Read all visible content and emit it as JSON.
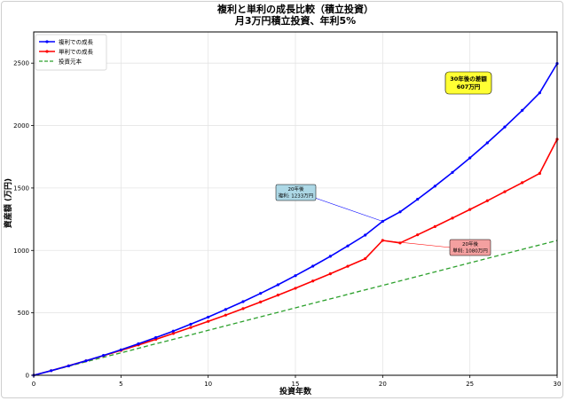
{
  "chart_data": {
    "type": "line",
    "title": "複利と単利の成長比較（積立投資）",
    "subtitle": "月3万円積立投資、年利5%",
    "xlabel": "投資年数",
    "ylabel": "資産額 (万円)",
    "xlim": [
      0,
      30
    ],
    "ylim": [
      0,
      2750
    ],
    "x_ticks": [
      0,
      5,
      10,
      15,
      20,
      25,
      30
    ],
    "y_ticks": [
      0,
      500,
      1000,
      1500,
      2000,
      2500
    ],
    "grid": true,
    "legend_position": "top-left",
    "x": [
      0,
      1,
      2,
      3,
      4,
      5,
      6,
      7,
      8,
      9,
      10,
      11,
      12,
      13,
      14,
      15,
      16,
      17,
      18,
      19,
      20,
      21,
      22,
      23,
      24,
      25,
      26,
      27,
      28,
      29,
      30
    ],
    "series": [
      {
        "name": "複利での成長",
        "color": "#0000ff",
        "style": "solid",
        "marker": true,
        "values": [
          0,
          37,
          75,
          116,
          159,
          204,
          252,
          302,
          354,
          409,
          466,
          527,
          590,
          656,
          725,
          798,
          874,
          953,
          1036,
          1123,
          1233,
          1309,
          1410,
          1515,
          1625,
          1741,
          1862,
          1989,
          2122,
          2262,
          2497
        ]
      },
      {
        "name": "単利での成長",
        "color": "#ff0000",
        "style": "solid",
        "marker": true,
        "values": [
          0,
          37,
          76,
          116,
          157,
          199,
          243,
          288,
          335,
          383,
          432,
          482,
          534,
          587,
          642,
          697,
          755,
          813,
          873,
          934,
          1080,
          1060,
          1125,
          1191,
          1259,
          1328,
          1398,
          1470,
          1543,
          1617,
          1890
        ]
      },
      {
        "name": "投資元本",
        "color": "#2ca02c",
        "style": "dashed",
        "marker": false,
        "values": [
          0,
          36,
          72,
          108,
          144,
          180,
          216,
          252,
          288,
          324,
          360,
          396,
          432,
          468,
          504,
          540,
          576,
          612,
          648,
          684,
          720,
          756,
          792,
          828,
          864,
          900,
          936,
          972,
          1008,
          1044,
          1080
        ]
      }
    ],
    "annotations": [
      {
        "lines": [
          "20年後",
          "複利: 1233万円"
        ],
        "point": [
          20,
          1233
        ],
        "color": "#0000ff",
        "box_color": "#add8e6"
      },
      {
        "lines": [
          "20年後",
          "単利: 1080万円"
        ],
        "point": [
          20,
          1080
        ],
        "color": "#ff0000",
        "box_color": "#f4a0a0"
      },
      {
        "lines": [
          "30年後の差額",
          "607万円"
        ],
        "box_color": "#ffff33"
      }
    ]
  }
}
